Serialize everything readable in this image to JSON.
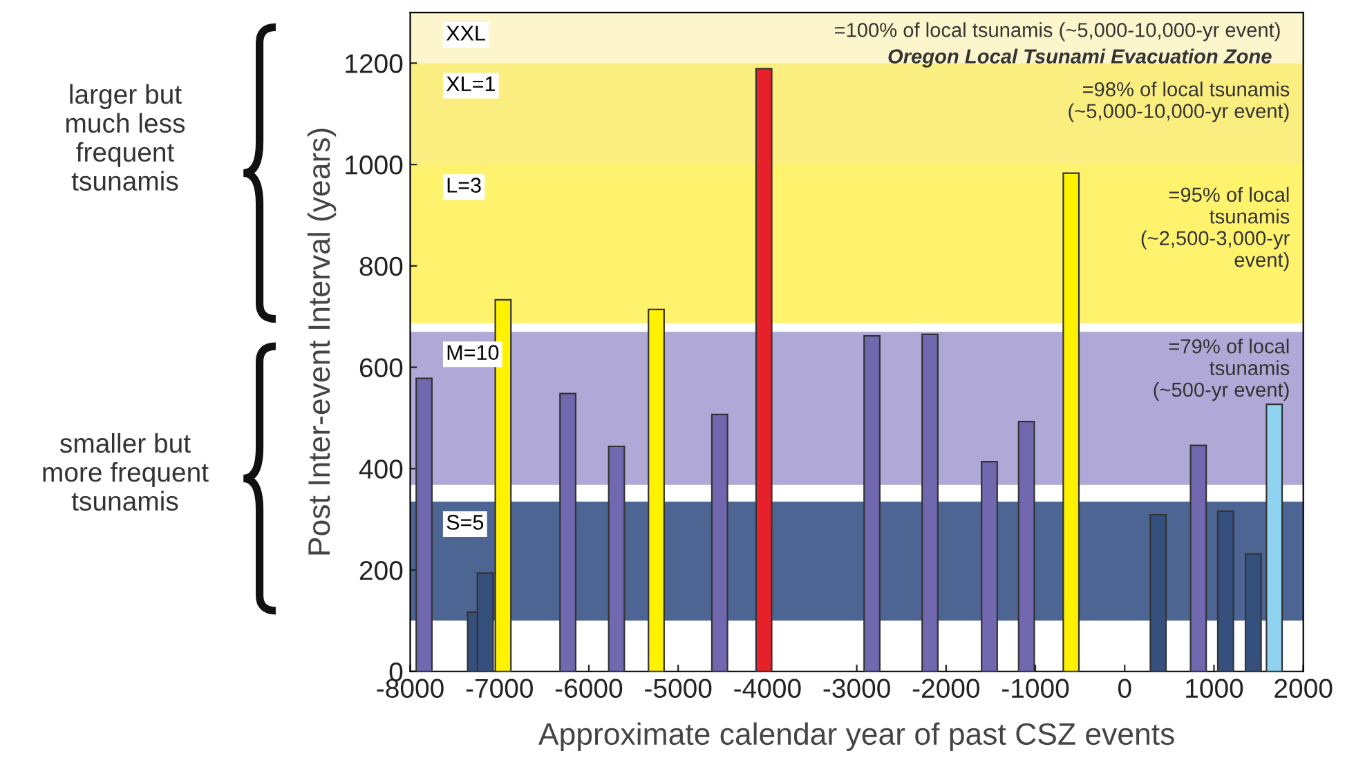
{
  "chart_data": {
    "type": "bar",
    "xlabel": "Approximate calendar year of past CSZ events",
    "ylabel": "Post Inter-event Interval (years)",
    "x": [
      -7845,
      -7270,
      -7160,
      -6960,
      -6235,
      -5690,
      -5245,
      -4535,
      -4040,
      -2830,
      -2180,
      -1515,
      -1100,
      -600,
      375,
      825,
      1130,
      1440,
      1675
    ],
    "values": [
      578,
      117,
      194,
      733,
      548,
      444,
      714,
      507,
      1189,
      662,
      665,
      414,
      493,
      983,
      309,
      446,
      316,
      232,
      527
    ],
    "colors": [
      "#7268b0",
      "#36507e",
      "#36507e",
      "#fff200",
      "#7268b0",
      "#7268b0",
      "#fff200",
      "#7268b0",
      "#e8202a",
      "#7268b0",
      "#7268b0",
      "#7268b0",
      "#7268b0",
      "#fff200",
      "#36507e",
      "#7268b0",
      "#36507e",
      "#36507e",
      "#8fd3f0"
    ],
    "xlim": [
      -8000,
      2000
    ],
    "xticks": [
      -8000,
      -7000,
      -6000,
      -5000,
      -4000,
      -3000,
      -2000,
      -1000,
      0,
      1000,
      2000
    ],
    "ylim": [
      0,
      1300
    ],
    "yticks": [
      0,
      200,
      400,
      600,
      800,
      1000,
      1200
    ],
    "grid": false,
    "bands": [
      {
        "axis": "y",
        "from": 1200,
        "to": 1300,
        "label": "XXL",
        "color": "#fdf6cc"
      },
      {
        "axis": "y",
        "from": 1000,
        "to": 1200,
        "label": "XL=1",
        "color": "#fbee80"
      },
      {
        "axis": "y",
        "from": 687,
        "to": 1000,
        "label": "L=3",
        "color": "#fff36e"
      },
      {
        "axis": "y",
        "from": 368,
        "to": 670,
        "label": "M=10",
        "color": "#b0a8d6"
      },
      {
        "axis": "y",
        "from": 100,
        "to": 335,
        "label": "S=5",
        "color": "#4d6592"
      }
    ],
    "annotations": [
      "=100% of local tsunamis (~5,000-10,000-yr event)",
      "Oregon Local Tsunami Evacuation Zone",
      "=98% of local tsunamis\n(~5,000-10,000-yr event)",
      "=95% of local\ntsunamis\n(~2,500-3,000-yr\nevent)",
      "=79% of local\ntsunamis\n(~500-yr event)",
      "larger but\nmuch less\nfrequent\ntsunamis",
      "smaller but\nmore frequent\ntsunamis"
    ]
  }
}
